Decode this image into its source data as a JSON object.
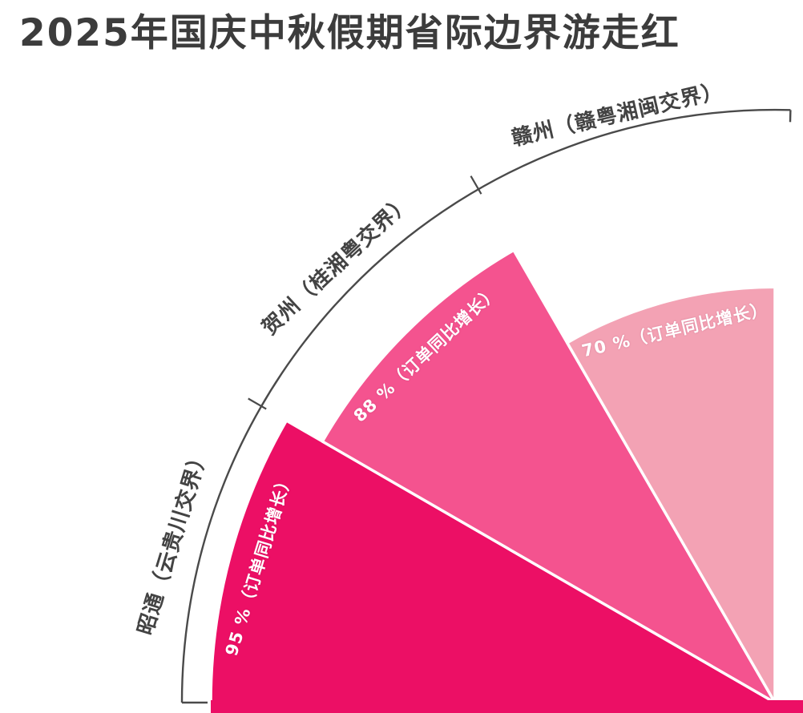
{
  "title": "2025年国庆中秋假期省际边界游走红",
  "chart_data": {
    "type": "bar",
    "coordinate_system": "polar-fan",
    "title": "2025年国庆中秋假期省际边界游走红",
    "categories": [
      "昭通（云贵川交界）",
      "贺州（桂湘粤交界）",
      "赣州（赣粤湘闽交界）"
    ],
    "values": [
      95,
      88,
      70
    ],
    "unit": "%",
    "series": [
      {
        "name": "订单同比增长",
        "values": [
          95,
          88,
          70
        ]
      }
    ],
    "value_labels": [
      "95 %（订单同比增长）",
      "88 %（订单同比增长）",
      "70 %（订单同比增长）"
    ],
    "sector_colors": [
      "#EC0F65",
      "#F4538F",
      "#F3A2B4"
    ],
    "angle_range_deg": [
      90,
      180
    ],
    "sector_span_deg": 30,
    "radial_range_pct": [
      0,
      100
    ],
    "axis_line_color": "#4a4a4a",
    "label_color": "#434343",
    "value_label_color": "#ffffff",
    "background": "#ffffff",
    "grid": "off",
    "legend": "none"
  }
}
